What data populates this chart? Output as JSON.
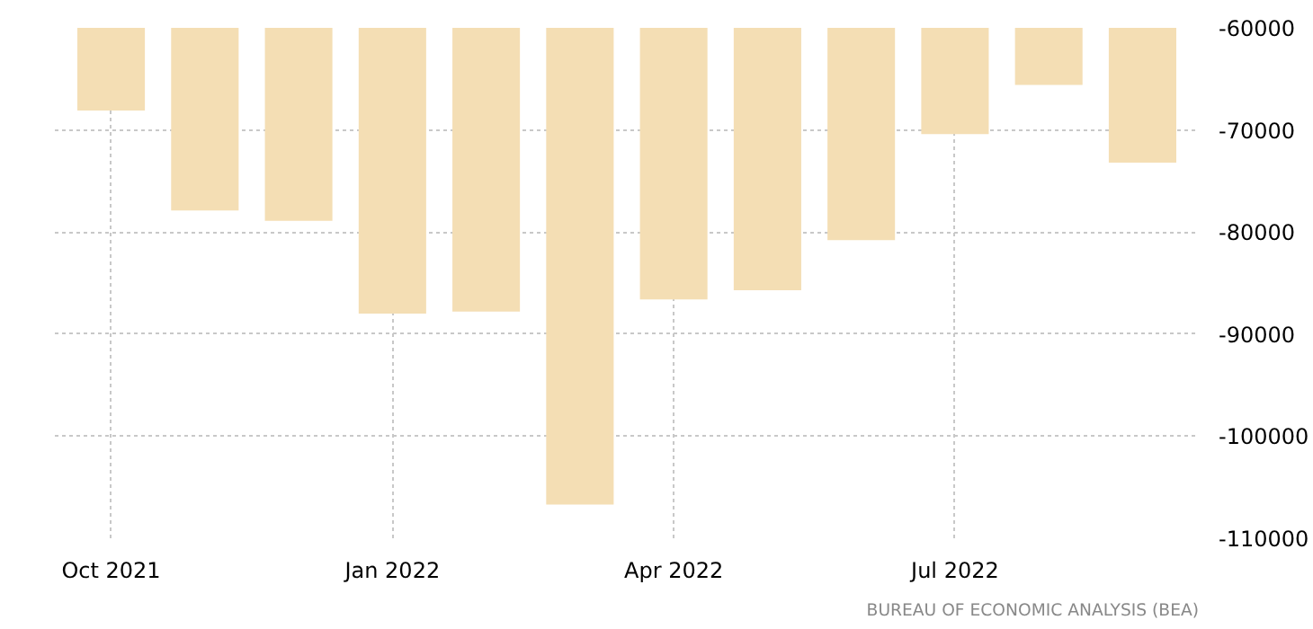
{
  "chart_data": {
    "type": "bar",
    "categories": [
      "Oct 2021",
      null,
      null,
      "Jan 2022",
      null,
      null,
      "Apr 2022",
      null,
      null,
      "Jul 2022",
      null,
      null
    ],
    "values": [
      -68100,
      -77900,
      -78900,
      -88000,
      -87800,
      -106700,
      -86600,
      -85700,
      -80800,
      -70400,
      -65600,
      -73200
    ],
    "color": "#f4deb4",
    "ylim": [
      -110000,
      -60000
    ],
    "yticks": [
      -110000,
      -100000,
      -90000,
      -80000,
      -70000,
      -60000
    ],
    "grid": true,
    "annotations": [
      "BUREAU OF ECONOMIC ANALYSIS (BEA)"
    ]
  }
}
